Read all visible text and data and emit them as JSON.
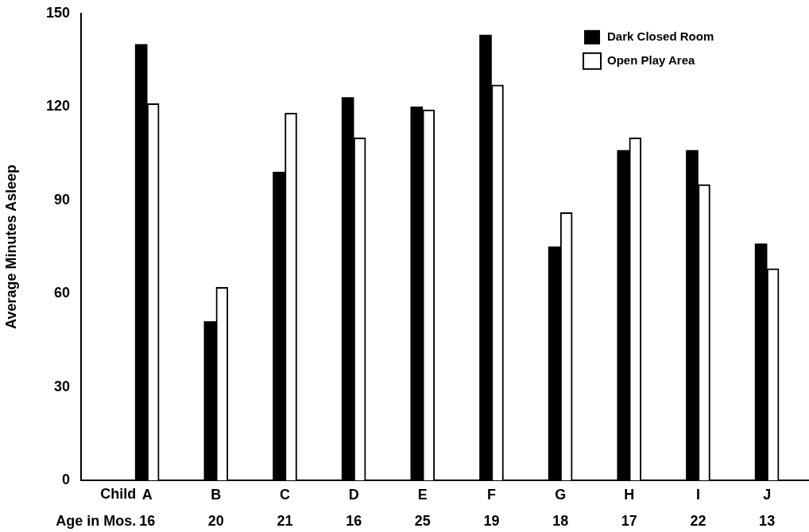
{
  "chart_data": {
    "type": "bar",
    "ylabel": "Average Minutes Asleep",
    "categories": [
      "A",
      "B",
      "C",
      "D",
      "E",
      "F",
      "G",
      "H",
      "I",
      "J"
    ],
    "series": [
      {
        "name": "Dark Closed Room",
        "color": "#000000",
        "values": [
          140,
          51,
          99,
          123,
          120,
          143,
          75,
          106,
          106,
          76
        ]
      },
      {
        "name": "Open Play Area",
        "color": "#ffffff",
        "values": [
          121,
          62,
          118,
          110,
          119,
          127,
          86,
          110,
          95,
          68
        ]
      }
    ],
    "ylim": [
      0,
      150
    ],
    "yticks": [
      0,
      30,
      60,
      90,
      120,
      150
    ],
    "grid": false,
    "legend": "top right",
    "annotations": [
      "Child",
      "Age in Mos.",
      "16",
      "20",
      "21",
      "16",
      "25",
      "19",
      "18",
      "17",
      "22",
      "13"
    ]
  }
}
